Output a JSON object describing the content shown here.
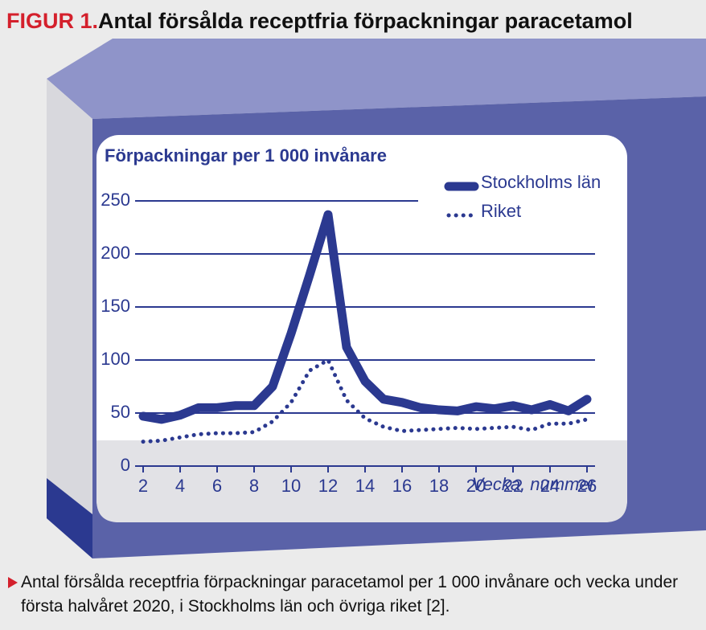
{
  "chart_data": {
    "type": "line",
    "figure_label": "FIGUR 1.",
    "title": "Antal försålda receptfria förpackningar paracetamol",
    "y_label": "Förpackningar per 1 000 invånare",
    "x_label": "Vecka, nummer",
    "caption": "Antal försålda receptfria förpackningar paracetamol per 1 000 invånare och vecka under första halvåret 2020, i Stockholms län och övriga riket [2].",
    "x": [
      2,
      3,
      4,
      5,
      6,
      7,
      8,
      9,
      10,
      11,
      12,
      13,
      14,
      15,
      16,
      17,
      18,
      19,
      20,
      21,
      22,
      23,
      24,
      25,
      26
    ],
    "series": [
      {
        "name": "Stockholms län",
        "color": "#2b3990",
        "line_style": "solid",
        "values": [
          47,
          44,
          48,
          55,
          55,
          57,
          57,
          75,
          125,
          180,
          237,
          112,
          80,
          63,
          60,
          55,
          53,
          52,
          56,
          54,
          57,
          53,
          58,
          52,
          63
        ]
      },
      {
        "name": "Riket",
        "color": "#2b3990",
        "line_style": "dotted",
        "values": [
          23,
          24,
          27,
          30,
          31,
          31,
          32,
          42,
          60,
          90,
          100,
          62,
          45,
          37,
          33,
          34,
          35,
          36,
          35,
          36,
          37,
          34,
          40,
          40,
          44
        ]
      }
    ],
    "xlim": [
      2,
      26
    ],
    "xticks": [
      2,
      4,
      6,
      8,
      10,
      12,
      14,
      16,
      18,
      20,
      22,
      24,
      26
    ],
    "ylim": [
      0,
      250
    ],
    "yticks": [
      0,
      50,
      100,
      150,
      200,
      250
    ],
    "grid": true
  }
}
